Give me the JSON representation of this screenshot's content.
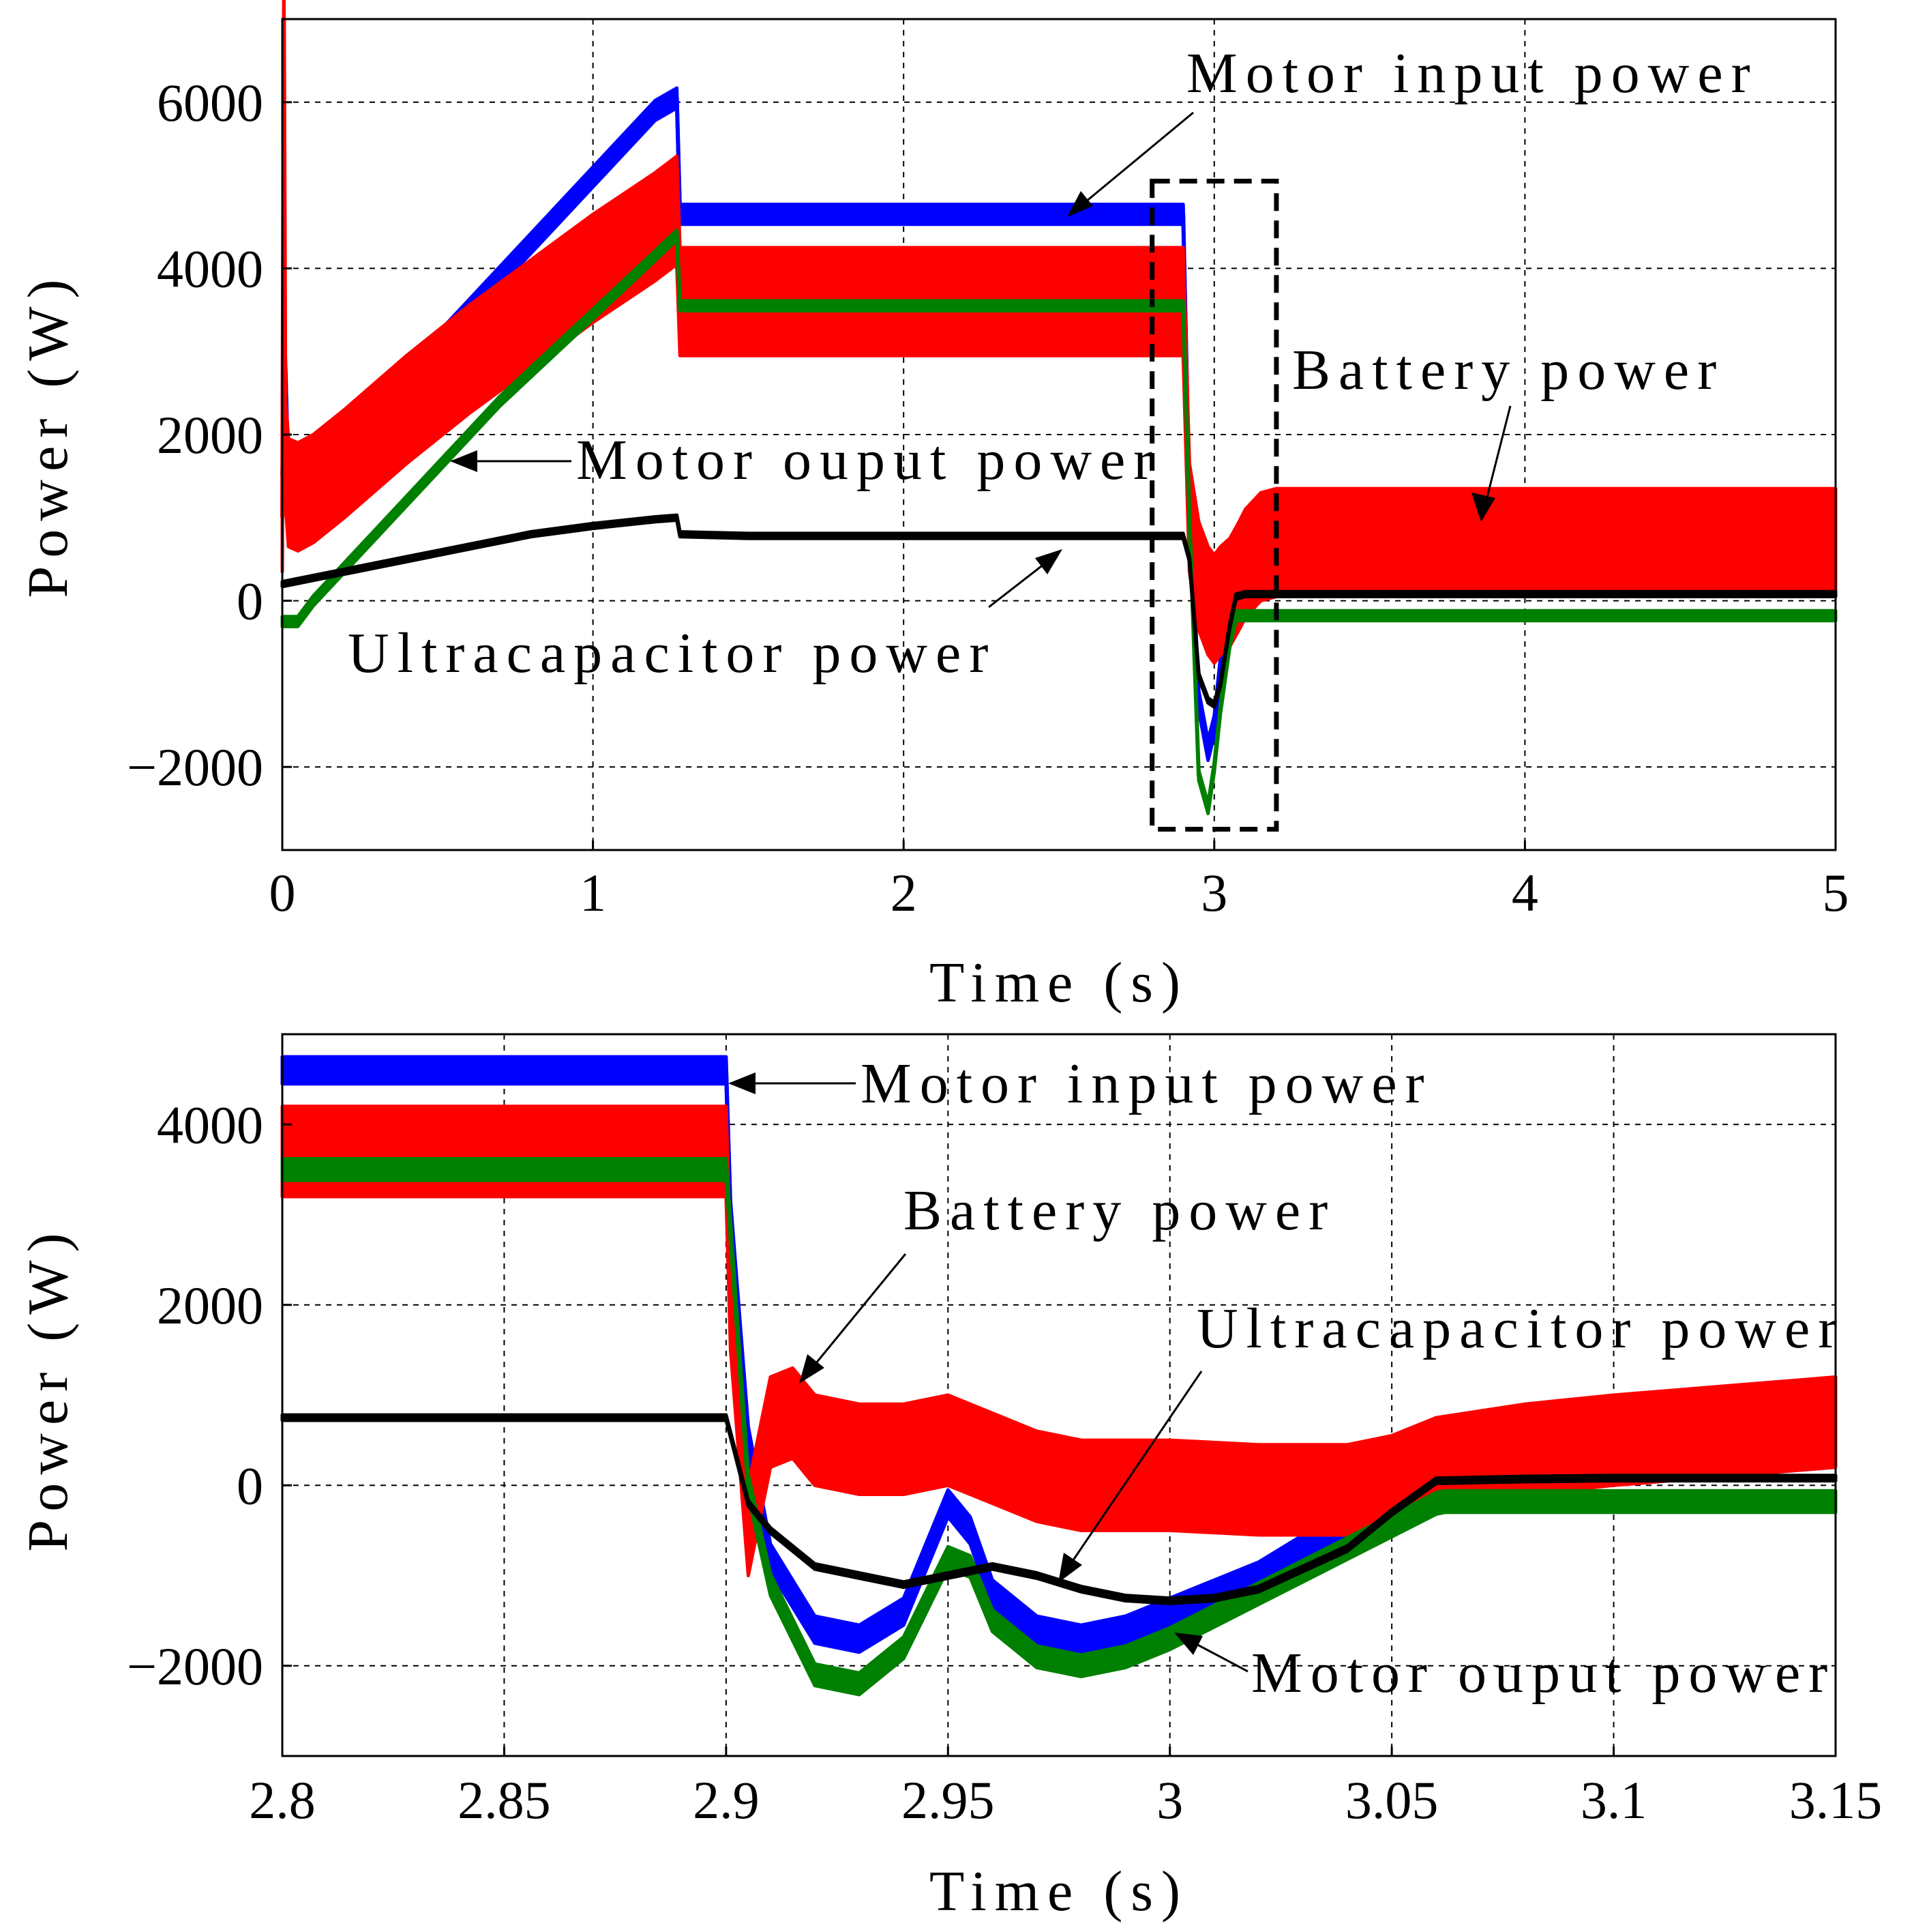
{
  "chart_data": [
    {
      "type": "line",
      "xlabel": "Time (s)",
      "ylabel": "Power (W)",
      "xlim": [
        0,
        5
      ],
      "ylim": [
        -3000,
        7000
      ],
      "xticks": [
        0,
        1,
        2,
        3,
        4,
        5
      ],
      "xtick_labels": [
        "0",
        "1",
        "2",
        "3",
        "4",
        "5"
      ],
      "yticks": [
        -2000,
        0,
        2000,
        4000,
        6000
      ],
      "ytick_labels": [
        "−2000",
        "0",
        "2000",
        "4000",
        "6000"
      ],
      "grid": true,
      "zoom_box": {
        "x": [
          2.8,
          3.2
        ],
        "y": [
          -2750,
          5050
        ]
      },
      "series": [
        {
          "name": "Motor input power",
          "color": "#0000ff",
          "band": 120,
          "x": [
            0,
            0.01,
            0.02,
            0.05,
            0.1,
            0.2,
            0.4,
            0.6,
            0.8,
            1.0,
            1.2,
            1.27,
            1.28,
            1.3,
            1.5,
            2.0,
            2.5,
            2.9,
            2.92,
            2.95,
            2.98,
            3.0,
            3.02,
            3.05,
            3.08,
            3.1,
            3.15,
            3.2,
            4.0,
            5.0
          ],
          "y": [
            1500,
            2800,
            1400,
            1450,
            1550,
            1800,
            2700,
            3500,
            4300,
            5100,
            5900,
            6050,
            4650,
            4650,
            4650,
            4650,
            4650,
            4650,
            1200,
            -1200,
            -1800,
            -1500,
            -800,
            0,
            200,
            300,
            450,
            500,
            500,
            500
          ]
        },
        {
          "name": "Battery power",
          "color": "#ff0000",
          "band": 650,
          "x": [
            0,
            0.005,
            0.01,
            0.02,
            0.05,
            0.1,
            0.2,
            0.4,
            0.6,
            0.8,
            1.0,
            1.2,
            1.27,
            1.28,
            1.3,
            1.5,
            2.0,
            2.5,
            2.9,
            2.92,
            2.95,
            2.98,
            3.0,
            3.02,
            3.05,
            3.08,
            3.1,
            3.15,
            3.2,
            4.0,
            5.0
          ],
          "y": [
            1000,
            7000,
            1800,
            1300,
            1250,
            1350,
            1650,
            2300,
            2900,
            3450,
            4000,
            4500,
            4700,
            3600,
            3600,
            3600,
            3600,
            3600,
            3600,
            1000,
            300,
            0,
            -100,
            0,
            100,
            300,
            450,
            650,
            700,
            700,
            700
          ]
        },
        {
          "name": "Motor ouput power",
          "color": "#008000",
          "band": 60,
          "x": [
            0,
            0.05,
            0.1,
            0.3,
            0.5,
            0.7,
            0.9,
            1.1,
            1.27,
            1.28,
            1.5,
            2.0,
            2.5,
            2.9,
            2.92,
            2.95,
            2.98,
            3.0,
            3.02,
            3.05,
            3.07,
            3.1,
            3.5,
            4.0,
            5.0
          ],
          "y": [
            -250,
            -250,
            0,
            800,
            1600,
            2400,
            3100,
            3800,
            4400,
            3550,
            3550,
            3550,
            3550,
            3550,
            1000,
            -2100,
            -2500,
            -2000,
            -1300,
            -500,
            -180,
            -180,
            -180,
            -180,
            -180
          ]
        },
        {
          "name": "Ultracapacitor power",
          "color": "#000000",
          "band": 30,
          "x": [
            0,
            0.2,
            0.4,
            0.6,
            0.8,
            1.0,
            1.2,
            1.27,
            1.28,
            1.5,
            2.0,
            2.5,
            2.9,
            2.92,
            2.95,
            2.98,
            3.0,
            3.02,
            3.05,
            3.07,
            3.1,
            3.5,
            4.0,
            5.0
          ],
          "y": [
            200,
            350,
            500,
            650,
            800,
            900,
            980,
            1000,
            800,
            780,
            780,
            780,
            780,
            500,
            -900,
            -1200,
            -1250,
            -1000,
            -300,
            50,
            80,
            80,
            80,
            80
          ]
        }
      ],
      "annotations": [
        {
          "text": "Motor input power",
          "series": "Motor input power",
          "arrow_to": [
            2.55,
            4650
          ]
        },
        {
          "text": "Battery power",
          "series": "Battery power",
          "arrow_to": [
            3.85,
            850
          ]
        },
        {
          "text": "Motor ouput power",
          "series": "Motor ouput power",
          "arrow_to": [
            0.55,
            1750
          ]
        },
        {
          "text": "Ultracapacitor power",
          "series": "Ultracapacitor power",
          "arrow_to": [
            2.5,
            780
          ]
        }
      ]
    },
    {
      "type": "line",
      "xlabel": "Time (s)",
      "ylabel": "Power (W)",
      "xlim": [
        2.8,
        3.15
      ],
      "ylim": [
        -3000,
        5000
      ],
      "xticks": [
        2.8,
        2.85,
        2.9,
        2.95,
        3.0,
        3.05,
        3.1,
        3.15
      ],
      "xtick_labels": [
        "2.8",
        "2.85",
        "2.9",
        "2.95",
        "3",
        "3.05",
        "3.1",
        "3.15"
      ],
      "yticks": [
        -2000,
        0,
        2000,
        4000
      ],
      "ytick_labels": [
        "−2000",
        "0",
        "2000",
        "4000"
      ],
      "grid": true,
      "series": [
        {
          "name": "Motor input power",
          "color": "#0000ff",
          "band": 150,
          "x": [
            2.8,
            2.85,
            2.9,
            2.901,
            2.905,
            2.91,
            2.92,
            2.93,
            2.94,
            2.945,
            2.95,
            2.955,
            2.96,
            2.97,
            2.98,
            2.99,
            3.0,
            3.02,
            3.04,
            3.05,
            3.06,
            3.08,
            3.1,
            3.15
          ],
          "y": [
            4600,
            4600,
            4600,
            3000,
            500,
            -800,
            -1600,
            -1700,
            -1400,
            -800,
            -200,
            -500,
            -1200,
            -1600,
            -1700,
            -1600,
            -1400,
            -1000,
            -400,
            0,
            200,
            300,
            380,
            500
          ]
        },
        {
          "name": "Battery power",
          "color": "#ff0000",
          "band": 500,
          "x": [
            2.8,
            2.85,
            2.9,
            2.901,
            2.905,
            2.91,
            2.915,
            2.92,
            2.93,
            2.94,
            2.95,
            2.96,
            2.97,
            2.98,
            3.0,
            3.02,
            3.04,
            3.05,
            3.06,
            3.08,
            3.1,
            3.15
          ],
          "y": [
            3700,
            3700,
            3700,
            2000,
            -500,
            700,
            800,
            500,
            400,
            400,
            500,
            300,
            100,
            0,
            0,
            -50,
            -50,
            50,
            250,
            400,
            500,
            700
          ]
        },
        {
          "name": "Motor ouput power",
          "color": "#008000",
          "band": 120,
          "x": [
            2.8,
            2.85,
            2.9,
            2.905,
            2.91,
            2.92,
            2.93,
            2.94,
            2.95,
            2.955,
            2.96,
            2.97,
            2.98,
            2.99,
            3.0,
            3.02,
            3.04,
            3.06,
            3.062,
            3.07,
            3.1,
            3.15
          ],
          "y": [
            3500,
            3500,
            3500,
            0,
            -1100,
            -2100,
            -2200,
            -1800,
            -800,
            -900,
            -1500,
            -1900,
            -2000,
            -1900,
            -1700,
            -1200,
            -700,
            -200,
            -180,
            -180,
            -180,
            -180
          ]
        },
        {
          "name": "Ultracapacitor power",
          "color": "#000000",
          "band": 30,
          "x": [
            2.8,
            2.85,
            2.9,
            2.905,
            2.91,
            2.92,
            2.94,
            2.96,
            2.97,
            2.98,
            2.99,
            3.0,
            3.01,
            3.02,
            3.04,
            3.05,
            3.06,
            3.08,
            3.1,
            3.15
          ],
          "y": [
            750,
            750,
            750,
            -200,
            -500,
            -900,
            -1100,
            -900,
            -1000,
            -1150,
            -1250,
            -1280,
            -1250,
            -1150,
            -700,
            -300,
            50,
            70,
            80,
            80
          ]
        }
      ],
      "annotations": [
        {
          "text": "Motor input power",
          "series": "Motor input power",
          "arrow_to": [
            2.901,
            4600
          ]
        },
        {
          "text": "Battery power",
          "series": "Battery power",
          "arrow_to": [
            2.916,
            750
          ]
        },
        {
          "text": "Ultracapacitor power",
          "series": "Ultracapacitor power",
          "arrow_to": [
            2.978,
            -1050
          ]
        },
        {
          "text": "Motor ouput power",
          "series": "Motor ouput power",
          "arrow_to": [
            3.0,
            -1650
          ]
        }
      ]
    }
  ]
}
